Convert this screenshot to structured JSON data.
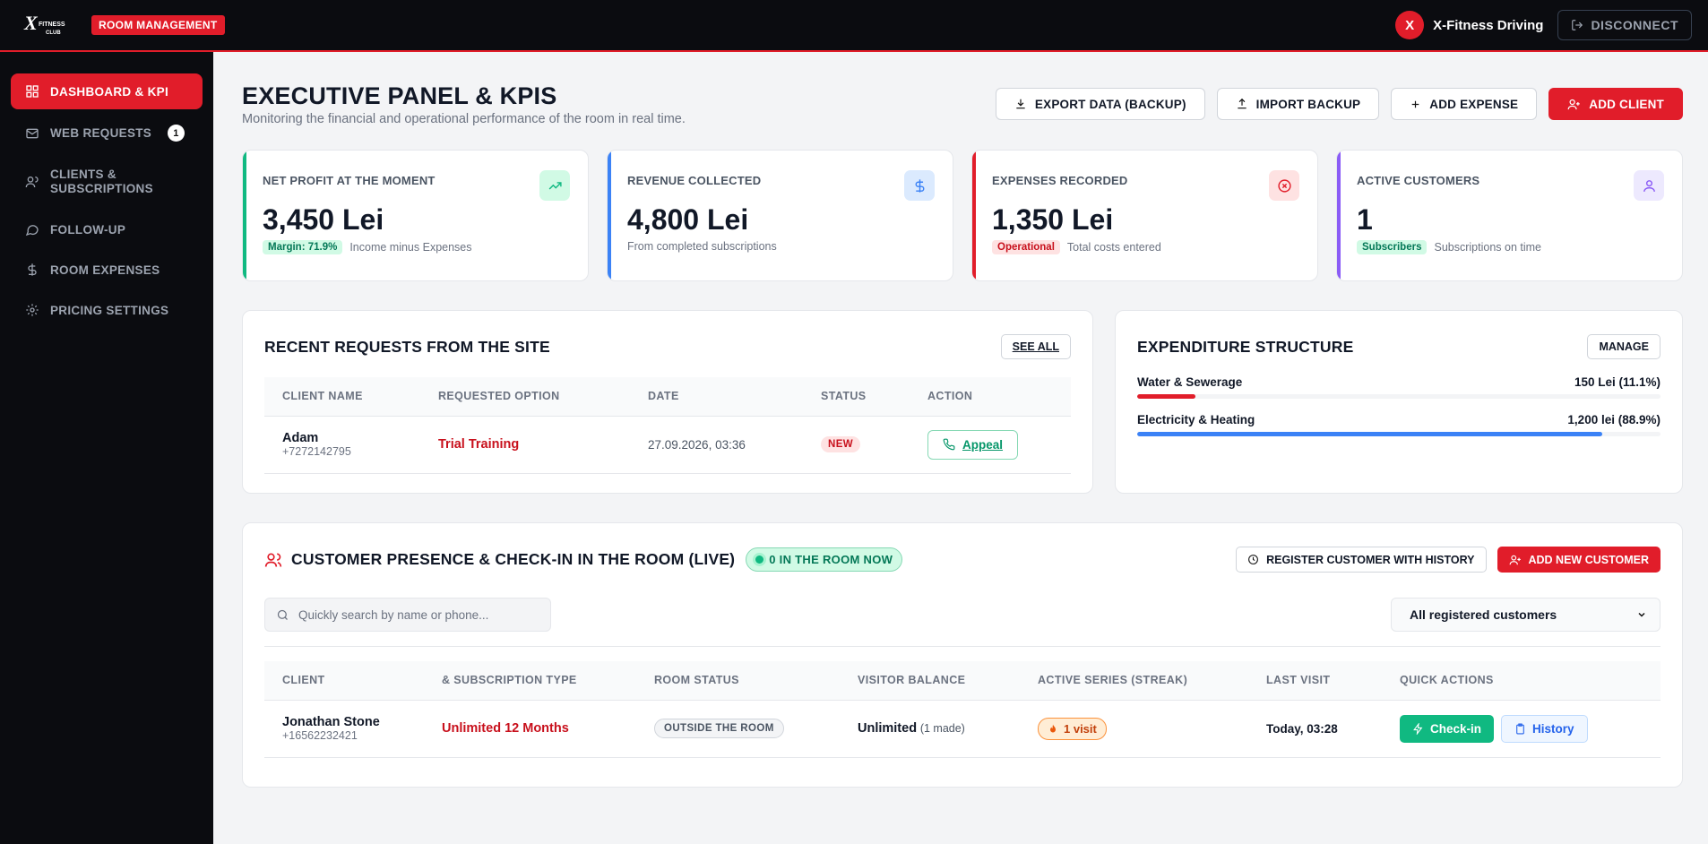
{
  "app": {
    "badge": "ROOM MANAGEMENT",
    "logo_text": "X FITNESS CLUB",
    "user_initial": "X",
    "user_name": "X-Fitness Driving",
    "disconnect_label": "DISCONNECT"
  },
  "sidebar": {
    "items": [
      {
        "label": "DASHBOARD & KPI",
        "icon": "grid-icon",
        "active": true
      },
      {
        "label": "WEB REQUESTS",
        "icon": "mail-icon",
        "count": "1"
      },
      {
        "label": "CLIENTS & SUBSCRIPTIONS",
        "icon": "users-icon"
      },
      {
        "label": "FOLLOW-UP",
        "icon": "chat-icon"
      },
      {
        "label": "ROOM EXPENSES",
        "icon": "dollar-icon"
      },
      {
        "label": "PRICING SETTINGS",
        "icon": "gear-icon"
      }
    ]
  },
  "header": {
    "title": "EXECUTIVE PANEL & KPIS",
    "subtitle": "Monitoring the financial and operational performance of the room in real time.",
    "actions": {
      "export": "EXPORT DATA (BACKUP)",
      "import": "IMPORT BACKUP",
      "add_expense": "ADD EXPENSE",
      "add_client": "ADD CLIENT"
    }
  },
  "kpis": [
    {
      "label": "NET PROFIT AT THE MOMENT",
      "value": "3,450 Lei",
      "chip": "Margin: 71.9%",
      "note": "Income minus Expenses",
      "color": "#10b981"
    },
    {
      "label": "REVENUE COLLECTED",
      "value": "4,800 Lei",
      "chip": "",
      "note": "From completed subscriptions",
      "color": "#3b82f6"
    },
    {
      "label": "EXPENSES RECORDED",
      "value": "1,350 Lei",
      "chip": "Operational",
      "note": "Total costs entered",
      "color": "#e11d2a"
    },
    {
      "label": "ACTIVE CUSTOMERS",
      "value": "1",
      "chip": "Subscribers",
      "note": "Subscriptions on time",
      "color": "#8b5cf6"
    }
  ],
  "requests": {
    "title": "RECENT REQUESTS FROM THE SITE",
    "see_all": "SEE ALL",
    "columns": [
      "CLIENT NAME",
      "REQUESTED OPTION",
      "DATE",
      "STATUS",
      "ACTION"
    ],
    "rows": [
      {
        "name": "Adam",
        "phone": "+7272142795",
        "option": "Trial Training",
        "date": "27.09.2026, 03:36",
        "status": "NEW",
        "action": "Appeal"
      }
    ]
  },
  "expenditure": {
    "title": "EXPENDITURE STRUCTURE",
    "manage": "MANAGE",
    "items": [
      {
        "label": "Water & Sewerage",
        "value": "150 Lei (11.1%)",
        "fraction": 0.111,
        "color": "#e11d2a"
      },
      {
        "label": "Electricity & Heating",
        "value": "1,200 lei (88.9%)",
        "fraction": 0.889,
        "color": "#3b82f6"
      }
    ]
  },
  "presence": {
    "title": "CUSTOMER PRESENCE & CHECK-IN IN THE ROOM (LIVE)",
    "live_chip": "0 IN THE ROOM NOW",
    "register_btn": "REGISTER CUSTOMER WITH HISTORY",
    "add_btn": "ADD NEW CUSTOMER",
    "search_placeholder": "Quickly search by name or phone...",
    "filter_value": "All registered customers",
    "columns": [
      "CLIENT",
      "& SUBSCRIPTION TYPE",
      "ROOM STATUS",
      "VISITOR BALANCE",
      "ACTIVE SERIES (STREAK)",
      "LAST VISIT",
      "QUICK ACTIONS"
    ],
    "rows": [
      {
        "name": "Jonathan Stone",
        "phone": "+16562232421",
        "subscription": "Unlimited 12 Months",
        "room_status": "OUTSIDE THE ROOM",
        "balance": "Unlimited",
        "balance_note": "(1 made)",
        "streak": "1 visit",
        "last_visit": "Today, 03:28",
        "checkin": "Check-in",
        "history": "History"
      }
    ]
  }
}
